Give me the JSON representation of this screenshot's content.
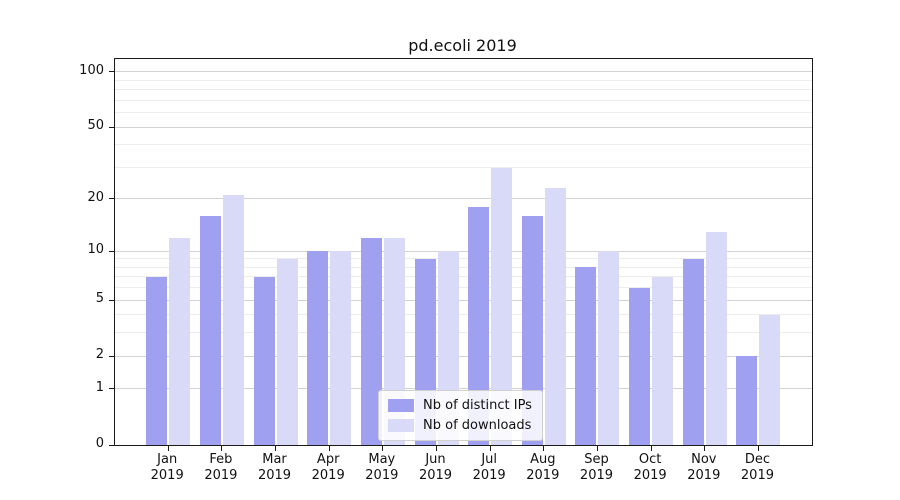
{
  "figure": {
    "title": "pd.ecoli 2019"
  },
  "chart_data": {
    "type": "bar",
    "title": "pd.ecoli 2019",
    "categories": [
      "Jan",
      "Feb",
      "Mar",
      "Apr",
      "May",
      "Jun",
      "Jul",
      "Aug",
      "Sep",
      "Oct",
      "Nov",
      "Dec"
    ],
    "x_tick_year": "2019",
    "series": [
      {
        "name": "Nb of distinct IPs",
        "color": "#a0a0f1",
        "values": [
          7,
          16,
          7,
          10,
          12,
          9,
          18,
          16,
          8,
          6,
          9,
          2
        ]
      },
      {
        "name": "Nb of downloads",
        "color": "#d9d9f8",
        "values": [
          12,
          21,
          9,
          10,
          12,
          10,
          30,
          23,
          10,
          7,
          13,
          4
        ]
      }
    ],
    "yticks": [
      0,
      1,
      2,
      5,
      10,
      20,
      50,
      100
    ],
    "yscale": "log1p",
    "ylim": [
      0,
      117
    ],
    "xlabel": "",
    "ylabel": "",
    "grid": true,
    "legend_position": "inside lower-center",
    "colors": {
      "grid_major": "#d2d2d2",
      "grid_minor": "#ececec",
      "spine": "#1a1a1a",
      "text": "#111111",
      "background": "#ffffff"
    }
  }
}
